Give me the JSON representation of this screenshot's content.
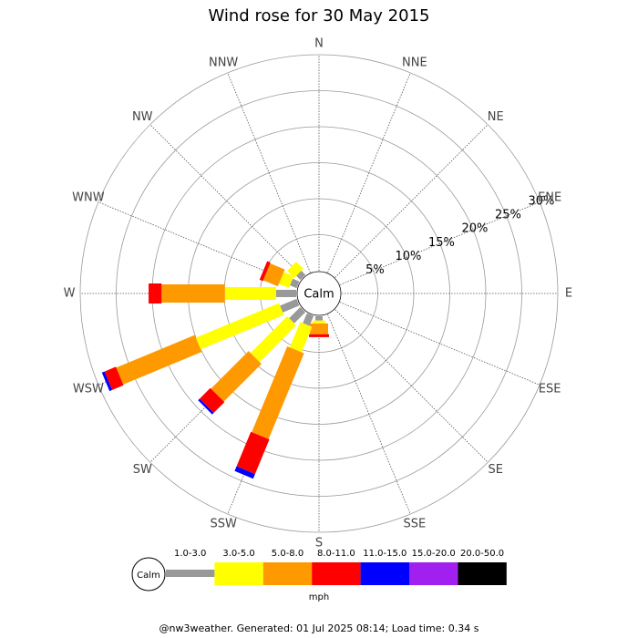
{
  "chart_data": {
    "type": "windrose",
    "title": "Wind rose for 30 May 2015",
    "directions": [
      "N",
      "NNE",
      "NE",
      "ENE",
      "E",
      "ESE",
      "SE",
      "SSE",
      "S",
      "SSW",
      "SW",
      "WSW",
      "W",
      "WNW",
      "NW",
      "NNW"
    ],
    "calm_label": "Calm",
    "rlim": [
      0,
      30
    ],
    "rticks": [
      {
        "value": 5,
        "label": "5%"
      },
      {
        "value": 10,
        "label": "10%"
      },
      {
        "value": 15,
        "label": "15%"
      },
      {
        "value": 20,
        "label": "20%"
      },
      {
        "value": 25,
        "label": "25%"
      },
      {
        "value": 30,
        "label": "30%"
      }
    ],
    "series": [
      {
        "name": "1.0-3.0",
        "color": "#999999",
        "values": [
          0,
          0,
          0,
          0,
          0,
          0,
          0,
          0,
          0.6,
          1.5,
          2.2,
          2.5,
          2.8,
          1.0,
          0.8,
          0
        ]
      },
      {
        "name": "3.0-5.0",
        "color": "#ffff00",
        "values": [
          0,
          0,
          0,
          0,
          0,
          0,
          0,
          0,
          0.4,
          3.8,
          7.2,
          12.5,
          7.1,
          1.5,
          1.4,
          0
        ]
      },
      {
        "name": "5.0-8.0",
        "color": "#ff9900",
        "values": [
          0,
          0,
          0,
          0,
          0,
          0,
          0,
          0,
          1.5,
          12.9,
          7.4,
          11.8,
          8.8,
          2.2,
          0,
          0
        ]
      },
      {
        "name": "8.0-11.0",
        "color": "#ff0000",
        "values": [
          0,
          0,
          0,
          0,
          0,
          0,
          0,
          0,
          0.4,
          5.2,
          2.1,
          1.7,
          1.8,
          0.5,
          0,
          0
        ]
      },
      {
        "name": "11.0-15.0",
        "color": "#0000ff",
        "values": [
          0,
          0,
          0,
          0,
          0,
          0,
          0,
          0,
          0,
          0.7,
          0.3,
          0.4,
          0,
          0,
          0,
          0
        ]
      },
      {
        "name": "15.0-20.0",
        "color": "#a020f0",
        "values": [
          0,
          0,
          0,
          0,
          0,
          0,
          0,
          0,
          0,
          0,
          0,
          0,
          0,
          0,
          0,
          0
        ]
      },
      {
        "name": "20.0-50.0",
        "color": "#000000",
        "values": [
          0,
          0,
          0,
          0,
          0,
          0,
          0,
          0,
          0,
          0,
          0,
          0,
          0,
          0,
          0,
          0
        ]
      }
    ],
    "legend_unit": "mph",
    "footer": "@nw3weather. Generated: 01 Jul 2025 08:14; Load time: 0.34 s"
  }
}
